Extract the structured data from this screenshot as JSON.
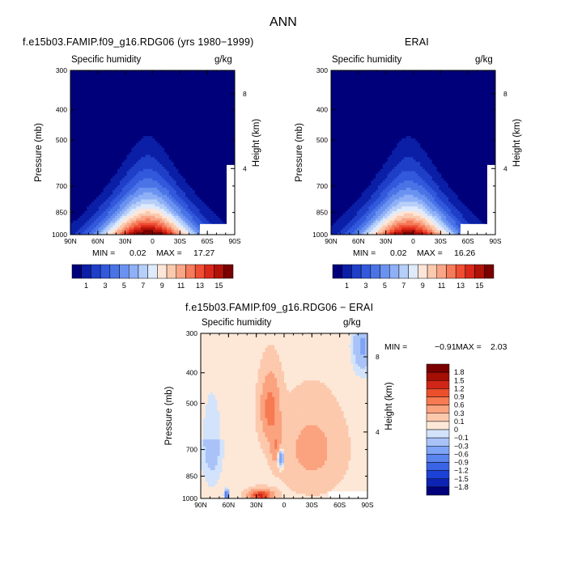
{
  "figure_title": "ANN",
  "colors": {
    "sequential": [
      "#00007a",
      "#0a1fa6",
      "#1f3fc8",
      "#3258dc",
      "#4a74e6",
      "#6a92f0",
      "#8fb0f7",
      "#b6cff9",
      "#dfeafc",
      "#fde6d8",
      "#fbc9ae",
      "#f9a586",
      "#f57b5b",
      "#ef4e33",
      "#d9281b",
      "#b01208",
      "#7a0000"
    ],
    "difference": [
      "#00007a",
      "#0d23b3",
      "#1c41d6",
      "#3a63e6",
      "#5a84ee",
      "#7fa4f5",
      "#a9c3f8",
      "#d2e3fb",
      "#fde8d8",
      "#fcc9ad",
      "#fba27f",
      "#f67a52",
      "#ec4f2c",
      "#d12617",
      "#a40e04",
      "#7a0000"
    ]
  },
  "chart_data": [
    {
      "type": "heatmap",
      "title": "f.e15b03.FAMIP.f09_g16.RDG06 (yrs 1980−1999)",
      "subtitle_left": "Specific humidity",
      "subtitle_right": "g/kg",
      "ylabel": "Pressure (mb)",
      "ylabel_right": "Height (km)",
      "x_ticks": [
        "90N",
        "60N",
        "30N",
        "0",
        "30S",
        "60S",
        "90S"
      ],
      "y_ticks": [
        "300",
        "400",
        "500",
        "700",
        "850",
        "1000"
      ],
      "y_ticks_right": [
        "8",
        "4"
      ],
      "min_label": "MIN =",
      "min_value": "0.02",
      "max_label": "MAX =",
      "max_value": "17.27",
      "colorbar_labels": [
        "1",
        "3",
        "5",
        "7",
        "9",
        "11",
        "13",
        "15"
      ],
      "field": {
        "peak_lat": 5,
        "peak_value": 17.3,
        "surface_width_deg": 48,
        "scale_height": 0.93,
        "skew": 0.1
      }
    },
    {
      "type": "heatmap",
      "title": "ERAI",
      "subtitle_left": "Specific humidity",
      "subtitle_right": "g/kg",
      "ylabel": "Pressure (mb)",
      "ylabel_right": "Height (km)",
      "x_ticks": [
        "90N",
        "60N",
        "30N",
        "0",
        "30S",
        "60S",
        "90S"
      ],
      "y_ticks": [
        "300",
        "400",
        "500",
        "700",
        "850",
        "1000"
      ],
      "y_ticks_right": [
        "8",
        "4"
      ],
      "min_label": "MIN =",
      "min_value": "0.02",
      "max_label": "MAX =",
      "max_value": "16.26",
      "colorbar_labels": [
        "1",
        "3",
        "5",
        "7",
        "9",
        "11",
        "13",
        "15"
      ],
      "field": {
        "peak_lat": 5,
        "peak_value": 16.3,
        "surface_width_deg": 47,
        "scale_height": 0.93,
        "skew": 0.1
      }
    },
    {
      "type": "heatmap",
      "title": "f.e15b03.FAMIP.f09_g16.RDG06 − ERAI",
      "subtitle_left": "Specific humidity",
      "subtitle_right": "g/kg",
      "ylabel": "Pressure (mb)",
      "ylabel_right": "Height (km)",
      "x_ticks": [
        "90N",
        "60N",
        "30N",
        "0",
        "30S",
        "60S",
        "90S"
      ],
      "y_ticks": [
        "300",
        "400",
        "500",
        "700",
        "850",
        "1000"
      ],
      "y_ticks_right": [
        "8",
        "4"
      ],
      "min_label": "MIN =",
      "min_value": "−0.91",
      "max_label": "MAX =",
      "max_value": "2.03",
      "colorbar_labels": [
        "1.8",
        "1.5",
        "1.2",
        "0.9",
        "0.6",
        "0.3",
        "0.1",
        "0",
        "−0.1",
        "−0.3",
        "−0.6",
        "−0.9",
        "−1.2",
        "−1.5",
        "−1.8"
      ]
    }
  ]
}
